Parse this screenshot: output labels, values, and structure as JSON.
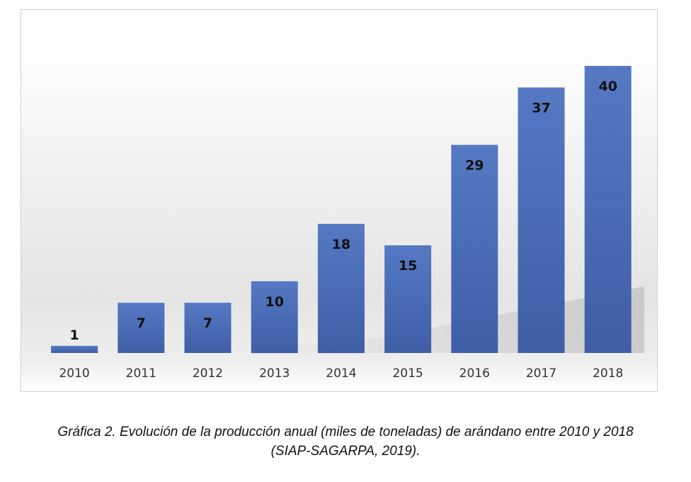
{
  "chart_data": {
    "type": "bar",
    "categories": [
      "2010",
      "2011",
      "2012",
      "2013",
      "2014",
      "2015",
      "2016",
      "2017",
      "2018"
    ],
    "values": [
      1,
      7,
      7,
      10,
      18,
      15,
      29,
      37,
      40
    ],
    "data_labels": [
      "1",
      "7",
      "7",
      "10",
      "18",
      "15",
      "29",
      "37",
      "40"
    ],
    "ylim": [
      0,
      40
    ],
    "grid": false,
    "legend": "none",
    "bar_color": "#4a6db8"
  },
  "caption": {
    "line1": "Gráfica 2. Evolución de la producción anual (miles de toneladas) de arándano entre 2010 y 2018",
    "line2": "(SIAP-SAGARPA, 2019)."
  }
}
